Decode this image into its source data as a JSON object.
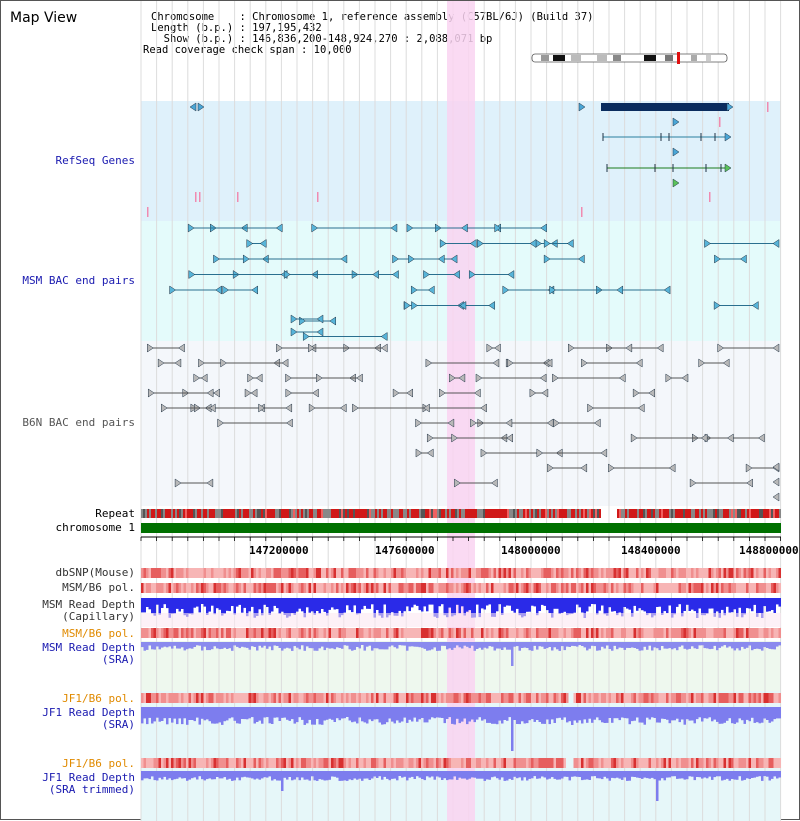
{
  "header": {
    "title": "Map View",
    "chromosome_line": "Chromosome    : Chromosome 1, reference assembly (C57BL/6J) (Build 37)",
    "length_line": "Length (b.p.) : 197,195,432",
    "show_line": "  Show (b.p.) : 146,836,200-148,924,270 : 2,088,071 bp",
    "coverage_line": "Read coverage check span : 10,000"
  },
  "tracks": {
    "refseq": "RefSeq Genes",
    "msm_bac": "MSM BAC end pairs",
    "b6n_bac": "B6N BAC end pairs",
    "repeat": "Repeat",
    "chromosome": "chromosome 1",
    "dbsnp": "dbSNP(Mouse)",
    "msm_b6_pol_1": "MSM/B6 pol.",
    "msm_read_depth_cap": "MSM Read Depth\n(Capillary)",
    "msm_b6_pol_2": "MSM/B6 pol.",
    "msm_read_depth_sra": "MSM Read Depth\n(SRA)",
    "jf1_b6_pol_1": "JF1/B6 pol.",
    "jf1_read_depth_sra": "JF1 Read Depth\n(SRA)",
    "jf1_b6_pol_2": "JF1/B6 pol.",
    "jf1_read_depth_trim": "JF1 Read Depth\n(SRA trimmed)"
  },
  "axis_ticks": [
    "147200000",
    "147600000",
    "148000000",
    "148400000",
    "148800000"
  ],
  "colors": {
    "refseq_bg": "#dff1fb",
    "msm_bg": "#e4fbfb",
    "b6n_bg": "#f4f7fb",
    "highlight": "#f9d4f1",
    "chromosome": "#007000",
    "depth_blue": "#2a2ae8",
    "sra_blue": "#7d7dee",
    "label_blue": "#1a1ab0",
    "label_orange": "#e08a00"
  }
}
